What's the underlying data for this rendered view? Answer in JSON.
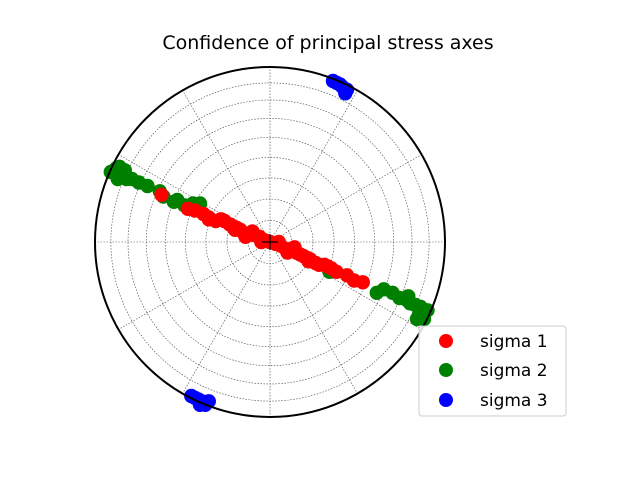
{
  "chart_data": {
    "type": "scatter",
    "projection": "stereonet",
    "title": "Confidence of principal stress axes",
    "grid": true,
    "legend_position": "lower-right",
    "center_marker": "+",
    "series": [
      {
        "name": "sigma 1",
        "color": "#ff0000",
        "points": [
          [
            0.0,
            0.0
          ],
          [
            -0.03,
            0.01
          ],
          [
            0.03,
            -0.01
          ],
          [
            -0.06,
            0.03
          ],
          [
            0.06,
            -0.02
          ],
          [
            -0.09,
            0.04
          ],
          [
            0.09,
            -0.04
          ],
          [
            -0.12,
            0.05
          ],
          [
            0.12,
            -0.05
          ],
          [
            -0.15,
            0.05
          ],
          [
            0.15,
            -0.06
          ],
          [
            -0.17,
            0.07
          ],
          [
            0.17,
            -0.07
          ],
          [
            -0.19,
            0.08
          ],
          [
            0.19,
            -0.08
          ],
          [
            -0.21,
            0.09
          ],
          [
            0.21,
            -0.09
          ],
          [
            -0.23,
            0.1
          ],
          [
            0.23,
            -0.1
          ],
          [
            -0.26,
            0.12
          ],
          [
            0.26,
            -0.12
          ],
          [
            -0.28,
            0.13
          ],
          [
            0.28,
            -0.13
          ],
          [
            -0.31,
            0.12
          ],
          [
            0.31,
            -0.13
          ],
          [
            -0.35,
            0.14
          ],
          [
            0.35,
            -0.15
          ],
          [
            -0.38,
            0.16
          ],
          [
            0.38,
            -0.17
          ],
          [
            -0.43,
            0.18
          ],
          [
            0.44,
            -0.19
          ],
          [
            -0.47,
            0.19
          ],
          [
            0.48,
            -0.22
          ],
          [
            -0.35,
            0.13
          ],
          [
            0.33,
            -0.14
          ],
          [
            -0.2,
            0.07
          ],
          [
            0.22,
            -0.11
          ],
          [
            -0.1,
            0.06
          ],
          [
            0.1,
            -0.06
          ],
          [
            -0.62,
            0.27
          ],
          [
            0.53,
            -0.23
          ],
          [
            -0.05,
            0.0
          ],
          [
            0.05,
            0.0
          ],
          [
            -0.14,
            0.03
          ],
          [
            0.14,
            -0.03
          ]
        ]
      },
      {
        "name": "sigma 2",
        "color": "#008000",
        "points": [
          [
            -0.91,
            0.4
          ],
          [
            -0.88,
            0.42
          ],
          [
            -0.86,
            0.39
          ],
          [
            -0.84,
            0.4
          ],
          [
            -0.87,
            0.36
          ],
          [
            -0.82,
            0.36
          ],
          [
            -0.79,
            0.36
          ],
          [
            -0.75,
            0.34
          ],
          [
            -0.7,
            0.32
          ],
          [
            -0.63,
            0.29
          ],
          [
            -0.61,
            0.26
          ],
          [
            -0.53,
            0.24
          ],
          [
            -0.49,
            0.21
          ],
          [
            -0.44,
            0.22
          ],
          [
            -0.4,
            0.22
          ],
          [
            -0.86,
            0.43
          ],
          [
            -0.83,
            0.41
          ],
          [
            -0.55,
            0.23
          ],
          [
            0.9,
            -0.39
          ],
          [
            0.88,
            -0.4
          ],
          [
            0.86,
            -0.37
          ],
          [
            0.85,
            -0.42
          ],
          [
            0.83,
            -0.36
          ],
          [
            0.8,
            -0.35
          ],
          [
            0.78,
            -0.33
          ],
          [
            0.74,
            -0.32
          ],
          [
            0.7,
            -0.29
          ],
          [
            0.65,
            -0.27
          ],
          [
            0.61,
            -0.29
          ],
          [
            0.34,
            -0.17
          ],
          [
            0.88,
            -0.44
          ],
          [
            0.84,
            -0.44
          ],
          [
            0.79,
            -0.31
          ]
        ]
      },
      {
        "name": "sigma 3",
        "color": "#0000ff",
        "points": [
          [
            0.36,
            0.92
          ],
          [
            0.38,
            0.91
          ],
          [
            0.4,
            0.9
          ],
          [
            0.42,
            0.88
          ],
          [
            0.44,
            0.87
          ],
          [
            0.43,
            0.85
          ],
          [
            0.41,
            0.89
          ],
          [
            -0.45,
            -0.88
          ],
          [
            -0.43,
            -0.89
          ],
          [
            -0.41,
            -0.9
          ],
          [
            -0.39,
            -0.91
          ],
          [
            -0.37,
            -0.93
          ],
          [
            -0.35,
            -0.91
          ],
          [
            -0.4,
            -0.93
          ]
        ]
      }
    ]
  }
}
